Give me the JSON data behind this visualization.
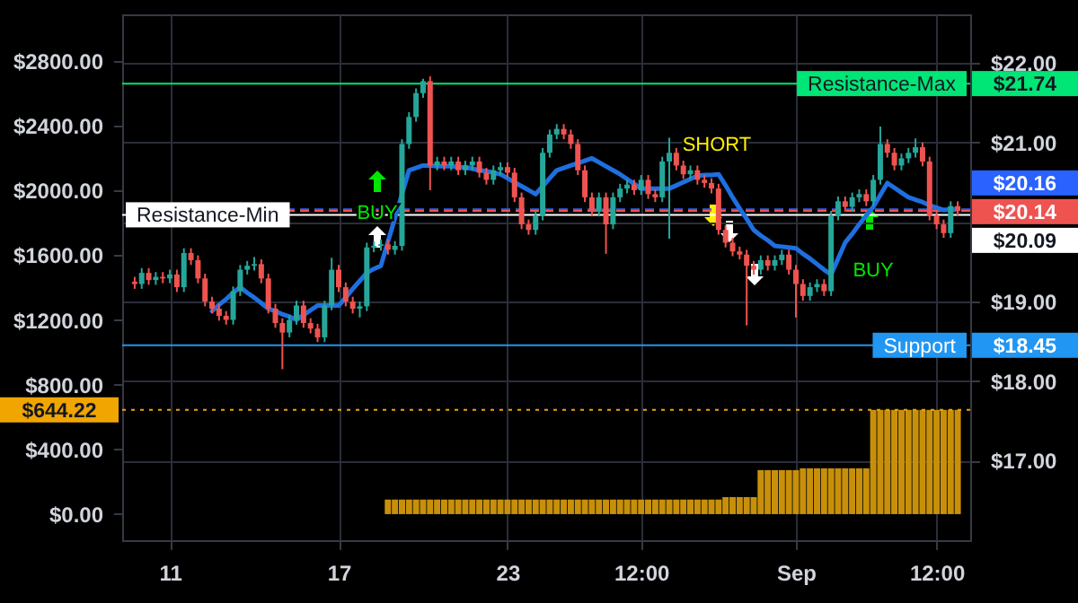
{
  "chart_data": {
    "type": "candlestick",
    "grid": true,
    "categories": [
      null,
      null,
      null,
      null,
      null,
      "11",
      null,
      null,
      null,
      null,
      null,
      null,
      null,
      null,
      null,
      null,
      null,
      null,
      null,
      null,
      null,
      null,
      null,
      null,
      null,
      null,
      null,
      null,
      null,
      "17",
      null,
      null,
      null,
      null,
      null,
      null,
      null,
      null,
      null,
      null,
      null,
      null,
      null,
      null,
      null,
      null,
      null,
      null,
      null,
      null,
      null,
      null,
      null,
      "23",
      null,
      null,
      null,
      null,
      null,
      null,
      null,
      null,
      null,
      null,
      null,
      null,
      null,
      null,
      null,
      null,
      null,
      null,
      "12:00",
      null,
      null,
      null,
      null,
      null,
      null,
      null,
      null,
      null,
      null,
      null,
      null,
      null,
      null,
      null,
      null,
      null,
      null,
      null,
      null,
      null,
      "Sep",
      null,
      null,
      null,
      null,
      null,
      null,
      null,
      null,
      null,
      null,
      null,
      null,
      null,
      null,
      null,
      null,
      null,
      null,
      null,
      "12:00",
      null,
      null,
      null
    ],
    "ylim": [
      -161,
      3088
    ],
    "yticks": [
      {
        "value": 0,
        "label": "$0.00"
      },
      {
        "value": 400,
        "label": "$400.00"
      },
      {
        "value": 800,
        "label": "$800.00"
      },
      {
        "value": 1200,
        "label": "$1200.00"
      },
      {
        "value": 1600,
        "label": "$1600.00"
      },
      {
        "value": 2000,
        "label": "$2000.00"
      },
      {
        "value": 2400,
        "label": "$2400.00"
      },
      {
        "value": 2800,
        "label": "$2800.00"
      }
    ],
    "y2lim": [
      16,
      22.61
    ],
    "y2ticks": [
      {
        "value": 17,
        "label": "$17.00"
      },
      {
        "value": 18,
        "label": "$18.00"
      },
      {
        "value": 19,
        "label": "$19.00"
      },
      {
        "value": 20,
        "label": null
      },
      {
        "value": 21,
        "label": "$21.00"
      },
      {
        "value": 22,
        "label": "$22.00"
      }
    ],
    "series": [
      {
        "type": "bar",
        "axis": "y",
        "color": "#c8900a",
        "values": [
          0,
          0,
          0,
          0,
          0,
          0,
          0,
          0,
          0,
          0,
          0,
          0,
          0,
          0,
          0,
          0,
          0,
          0,
          0,
          0,
          0,
          0,
          0,
          0,
          0,
          0,
          0,
          0,
          0,
          0,
          0,
          0,
          0,
          0,
          0,
          0,
          90,
          90,
          90,
          90,
          90,
          90,
          90,
          90,
          90,
          90,
          90,
          90,
          90,
          90,
          90,
          90,
          90,
          90,
          90,
          90,
          90,
          90,
          90,
          90,
          90,
          90,
          90,
          90,
          90,
          90,
          90,
          90,
          90,
          90,
          90,
          90,
          90,
          90,
          90,
          90,
          90,
          90,
          90,
          90,
          90,
          90,
          90,
          90,
          105,
          105,
          105,
          105,
          105,
          272,
          272,
          272,
          272,
          272,
          272,
          283,
          283,
          283,
          283,
          283,
          283,
          283,
          283,
          283,
          283,
          644.22,
          644.22,
          644.22,
          644.22,
          644.22,
          644.22,
          644.22,
          644.22,
          644.22,
          644.22,
          644.22,
          644.22,
          644.22
        ]
      },
      {
        "axis": "y2",
        "colors": [
          "#ef5350",
          "#26a69a",
          "#ef5350",
          "#26a69a",
          "#ef5350",
          "#26a69a",
          "#ef5350",
          "#26a69a",
          "#ef5350",
          "#ef5350",
          "#ef5350",
          "#ef5350",
          "#ef5350",
          "#ef5350",
          "#26a69a",
          "#26a69a",
          "#26a69a",
          "#26a69a",
          "#ef5350",
          "#ef5350",
          "#ef5350",
          "#ef5350",
          "#26a69a",
          "#26a69a",
          "#ef5350",
          "#ef5350",
          "#ef5350",
          "#26a69a",
          "#26a69a",
          "#ef5350",
          "#ef5350",
          "#ef5350",
          "#26a69a",
          "#26a69a",
          "#26a69a",
          "#26a69a",
          "#ef5350",
          "#26a69a",
          "#26a69a",
          "#26a69a",
          "#26a69a",
          "#26a69a",
          "#ef5350",
          "#26a69a",
          "#ef5350",
          "#26a69a",
          "#ef5350",
          "#26a69a",
          "#26a69a",
          "#ef5350",
          "#ef5350",
          "#26a69a",
          "#26a69a",
          "#ef5350",
          "#ef5350",
          "#ef5350",
          "#ef5350",
          "#26a69a",
          "#26a69a",
          "#26a69a",
          "#26a69a",
          "#ef5350",
          "#ef5350",
          "#ef5350",
          "#ef5350",
          "#ef5350",
          "#26a69a",
          "#ef5350",
          "#26a69a",
          "#26a69a",
          "#26a69a",
          "#ef5350",
          "#26a69a",
          "#ef5350",
          "#ef5350",
          "#26a69a",
          "#26a69a",
          "#ef5350",
          "#ef5350",
          "#26a69a",
          "#ef5350",
          "#ef5350",
          "#ef5350",
          "#ef5350",
          "#ef5350",
          "#ef5350",
          "#ef5350",
          "#ef5350",
          "#ef5350",
          "#26a69a",
          "#ef5350",
          "#26a69a",
          "#26a69a",
          "#ef5350",
          "#ef5350",
          "#ef5350",
          "#26a69a",
          "#26a69a",
          "#ef5350",
          "#26a69a",
          "#26a69a",
          "#ef5350",
          "#26a69a",
          "#26a69a",
          "#ef5350",
          "#26a69a",
          "#26a69a",
          "#ef5350",
          "#ef5350",
          "#26a69a",
          "#26a69a",
          "#26a69a",
          "#ef5350",
          "#ef5350",
          "#ef5350",
          "#ef5350",
          "#26a69a",
          "#ef5350"
        ],
        "ohlc": [
          [
            19.25,
            19.31,
            19.16,
            19.22
          ],
          [
            19.22,
            19.42,
            19.16,
            19.36
          ],
          [
            19.36,
            19.42,
            19.21,
            19.27
          ],
          [
            19.27,
            19.37,
            19.21,
            19.31
          ],
          [
            19.31,
            19.37,
            19.23,
            19.29
          ],
          [
            19.29,
            19.4,
            19.23,
            19.34
          ],
          [
            19.34,
            19.4,
            19.12,
            19.18
          ],
          [
            19.18,
            19.67,
            19.12,
            19.61
          ],
          [
            19.61,
            19.67,
            19.46,
            19.52
          ],
          [
            19.52,
            19.58,
            19.23,
            19.29
          ],
          [
            19.29,
            19.35,
            18.94,
            19.0
          ],
          [
            19.0,
            19.06,
            18.85,
            18.91
          ],
          [
            18.91,
            18.97,
            18.76,
            18.82
          ],
          [
            18.82,
            18.88,
            18.71,
            18.77
          ],
          [
            18.77,
            19.19,
            18.71,
            19.13
          ],
          [
            19.13,
            19.46,
            19.07,
            19.4
          ],
          [
            19.4,
            19.51,
            19.34,
            19.45
          ],
          [
            19.45,
            19.56,
            19.39,
            19.47
          ],
          [
            19.47,
            19.53,
            19.23,
            19.29
          ],
          [
            19.29,
            19.35,
            18.85,
            18.91
          ],
          [
            18.91,
            18.97,
            18.67,
            18.73
          ],
          [
            18.73,
            18.79,
            18.15,
            18.61
          ],
          [
            18.61,
            18.83,
            18.55,
            18.77
          ],
          [
            18.77,
            19.01,
            18.71,
            18.95
          ],
          [
            18.95,
            19.01,
            18.67,
            18.73
          ],
          [
            18.73,
            18.79,
            18.6,
            18.66
          ],
          [
            18.66,
            18.72,
            18.49,
            18.55
          ],
          [
            18.55,
            19.01,
            18.49,
            18.95
          ],
          [
            18.95,
            19.55,
            18.89,
            19.4
          ],
          [
            19.4,
            19.46,
            19.12,
            19.18
          ],
          [
            19.18,
            19.24,
            18.94,
            19.0
          ],
          [
            19.0,
            19.06,
            18.85,
            18.91
          ],
          [
            18.91,
            19.0,
            18.8,
            18.94
          ],
          [
            18.94,
            19.74,
            18.88,
            19.68
          ],
          [
            19.68,
            19.76,
            19.62,
            19.7
          ],
          [
            19.7,
            19.78,
            19.64,
            19.72
          ],
          [
            19.72,
            19.78,
            19.59,
            19.65
          ],
          [
            19.65,
            19.76,
            19.59,
            19.7
          ],
          [
            19.7,
            21.04,
            19.64,
            20.98
          ],
          [
            20.98,
            21.38,
            20.92,
            21.32
          ],
          [
            21.32,
            21.68,
            21.26,
            21.62
          ],
          [
            21.62,
            21.8,
            21.56,
            21.77
          ],
          [
            21.77,
            21.83,
            20.4,
            20.71
          ],
          [
            20.71,
            20.82,
            20.65,
            20.76
          ],
          [
            20.76,
            20.82,
            20.65,
            20.71
          ],
          [
            20.71,
            20.82,
            20.65,
            20.76
          ],
          [
            20.76,
            20.82,
            20.59,
            20.65
          ],
          [
            20.65,
            20.77,
            20.59,
            20.71
          ],
          [
            20.71,
            20.82,
            20.65,
            20.76
          ],
          [
            20.76,
            20.82,
            20.56,
            20.62
          ],
          [
            20.62,
            20.68,
            20.47,
            20.53
          ],
          [
            20.53,
            20.71,
            20.47,
            20.65
          ],
          [
            20.65,
            20.75,
            20.59,
            20.69
          ],
          [
            20.69,
            20.75,
            20.56,
            20.62
          ],
          [
            20.62,
            20.68,
            20.25,
            20.31
          ],
          [
            20.31,
            20.37,
            19.91,
            19.97
          ],
          [
            19.97,
            20.03,
            19.84,
            19.9
          ],
          [
            19.9,
            20.14,
            19.84,
            20.08
          ],
          [
            20.08,
            20.93,
            20.02,
            20.87
          ],
          [
            20.87,
            21.16,
            20.81,
            21.1
          ],
          [
            21.1,
            21.23,
            21.04,
            21.17
          ],
          [
            21.17,
            21.23,
            21.04,
            21.1
          ],
          [
            21.1,
            21.16,
            20.92,
            20.98
          ],
          [
            20.98,
            21.04,
            20.59,
            20.65
          ],
          [
            20.65,
            20.71,
            20.25,
            20.31
          ],
          [
            20.31,
            20.37,
            20.07,
            20.13
          ],
          [
            20.13,
            20.37,
            20.07,
            20.31
          ],
          [
            20.31,
            20.37,
            19.6,
            19.97
          ],
          [
            19.97,
            20.37,
            19.91,
            20.31
          ],
          [
            20.31,
            20.48,
            20.25,
            20.42
          ],
          [
            20.42,
            20.53,
            20.36,
            20.47
          ],
          [
            20.47,
            20.53,
            20.34,
            20.4
          ],
          [
            20.4,
            20.59,
            20.34,
            20.53
          ],
          [
            20.53,
            20.59,
            20.29,
            20.35
          ],
          [
            20.35,
            20.41,
            20.25,
            20.31
          ],
          [
            20.31,
            20.82,
            20.25,
            20.76
          ],
          [
            20.76,
            21.06,
            19.79,
            20.87
          ],
          [
            20.87,
            20.93,
            20.65,
            20.71
          ],
          [
            20.71,
            20.77,
            20.54,
            20.6
          ],
          [
            20.6,
            20.71,
            20.54,
            20.65
          ],
          [
            20.65,
            20.71,
            20.47,
            20.53
          ],
          [
            20.53,
            20.59,
            20.43,
            20.49
          ],
          [
            20.49,
            20.55,
            20.36,
            20.42
          ],
          [
            20.42,
            20.48,
            19.84,
            19.9
          ],
          [
            19.9,
            19.96,
            19.68,
            19.74
          ],
          [
            19.74,
            19.8,
            19.57,
            19.63
          ],
          [
            19.63,
            19.69,
            19.53,
            19.59
          ],
          [
            19.59,
            19.65,
            18.7,
            19.45
          ],
          [
            19.45,
            19.51,
            19.34,
            19.4
          ],
          [
            19.4,
            19.58,
            19.34,
            19.52
          ],
          [
            19.52,
            19.58,
            19.39,
            19.45
          ],
          [
            19.45,
            19.58,
            19.39,
            19.52
          ],
          [
            19.52,
            19.65,
            19.46,
            19.59
          ],
          [
            19.59,
            19.65,
            19.34,
            19.4
          ],
          [
            19.4,
            19.46,
            18.8,
            19.22
          ],
          [
            19.22,
            19.28,
            19.01,
            19.07
          ],
          [
            19.07,
            19.24,
            19.01,
            19.18
          ],
          [
            19.18,
            19.28,
            19.12,
            19.22
          ],
          [
            19.22,
            19.28,
            19.07,
            19.13
          ],
          [
            19.13,
            20.14,
            19.07,
            20.08
          ],
          [
            20.08,
            20.32,
            20.02,
            20.26
          ],
          [
            20.26,
            20.32,
            20.13,
            20.19
          ],
          [
            20.19,
            20.37,
            20.13,
            20.31
          ],
          [
            20.31,
            20.41,
            20.25,
            20.35
          ],
          [
            20.35,
            20.41,
            20.2,
            20.26
          ],
          [
            20.26,
            20.59,
            20.2,
            20.53
          ],
          [
            20.53,
            21.2,
            20.47,
            20.98
          ],
          [
            20.98,
            21.04,
            20.81,
            20.87
          ],
          [
            20.87,
            20.93,
            20.65,
            20.71
          ],
          [
            20.71,
            20.86,
            20.65,
            20.8
          ],
          [
            20.8,
            20.93,
            20.74,
            20.87
          ],
          [
            20.87,
            21.05,
            20.81,
            20.94
          ],
          [
            20.94,
            21.0,
            20.7,
            20.76
          ],
          [
            20.76,
            20.82,
            20.02,
            20.08
          ],
          [
            20.08,
            20.14,
            19.91,
            19.97
          ],
          [
            19.97,
            20.03,
            19.8,
            19.86
          ],
          [
            19.86,
            20.26,
            19.8,
            20.2
          ],
          [
            20.2,
            20.26,
            20.08,
            20.14
          ]
        ]
      },
      {
        "type": "line",
        "axis": "y2",
        "color": "#1e6fe0",
        "values": [
          null,
          null,
          null,
          null,
          null,
          null,
          null,
          null,
          null,
          null,
          null,
          18.88,
          18.96,
          19.03,
          19.11,
          19.18,
          19.11,
          19.05,
          18.98,
          18.91,
          18.88,
          18.84,
          18.81,
          18.77,
          18.83,
          18.89,
          18.95,
          18.95,
          18.95,
          18.95,
          19.05,
          19.16,
          19.26,
          19.36,
          19.41,
          19.45,
          19.75,
          20.05,
          20.35,
          20.65,
          20.68,
          20.71,
          20.71,
          20.7,
          20.7,
          20.7,
          20.69,
          20.69,
          20.67,
          20.65,
          20.64,
          20.62,
          20.6,
          20.55,
          20.5,
          20.45,
          20.4,
          20.35,
          20.45,
          20.55,
          20.65,
          20.68,
          20.71,
          20.74,
          20.77,
          20.8,
          20.75,
          20.7,
          20.65,
          20.6,
          20.54,
          20.48,
          20.42,
          20.42,
          20.42,
          20.42,
          20.42,
          20.46,
          20.5,
          20.54,
          20.58,
          20.59,
          20.59,
          20.6,
          20.46,
          20.31,
          20.17,
          20.04,
          19.9,
          19.83,
          19.77,
          19.7,
          19.69,
          19.68,
          19.67,
          19.6,
          19.54,
          19.47,
          19.4,
          19.34,
          19.54,
          19.74,
          19.85,
          19.97,
          20.08,
          20.19,
          20.34,
          20.49,
          20.43,
          20.37,
          20.31,
          20.28,
          20.25,
          20.21,
          20.18,
          20.15,
          20.16,
          20.16
        ]
      }
    ],
    "ref_lines": [
      {
        "axis": "y2",
        "value": 21.74,
        "label": "Resistance-Max",
        "color": "#00e676"
      },
      {
        "axis": "y2",
        "value": 20.16,
        "color": "#2962ff",
        "line_style": "dashed"
      },
      {
        "axis": "y2",
        "value": 20.14,
        "color": "#ef5350",
        "line_style": "dashed"
      },
      {
        "axis": "y2",
        "value": 20.09,
        "label": "Resistance-Min",
        "color": "#ffffff"
      },
      {
        "axis": "y2",
        "value": 18.45,
        "label": "Support",
        "color": "#2196f3"
      },
      {
        "axis": "y",
        "value": 644.22,
        "color": "#f0a500",
        "line_style": "dotted"
      }
    ],
    "annotations": [
      "BUY",
      "SHORT",
      "BUY",
      "$21.74",
      "$20.16",
      "$20.14",
      "$20.09",
      "$18.45",
      "$644.22"
    ]
  }
}
